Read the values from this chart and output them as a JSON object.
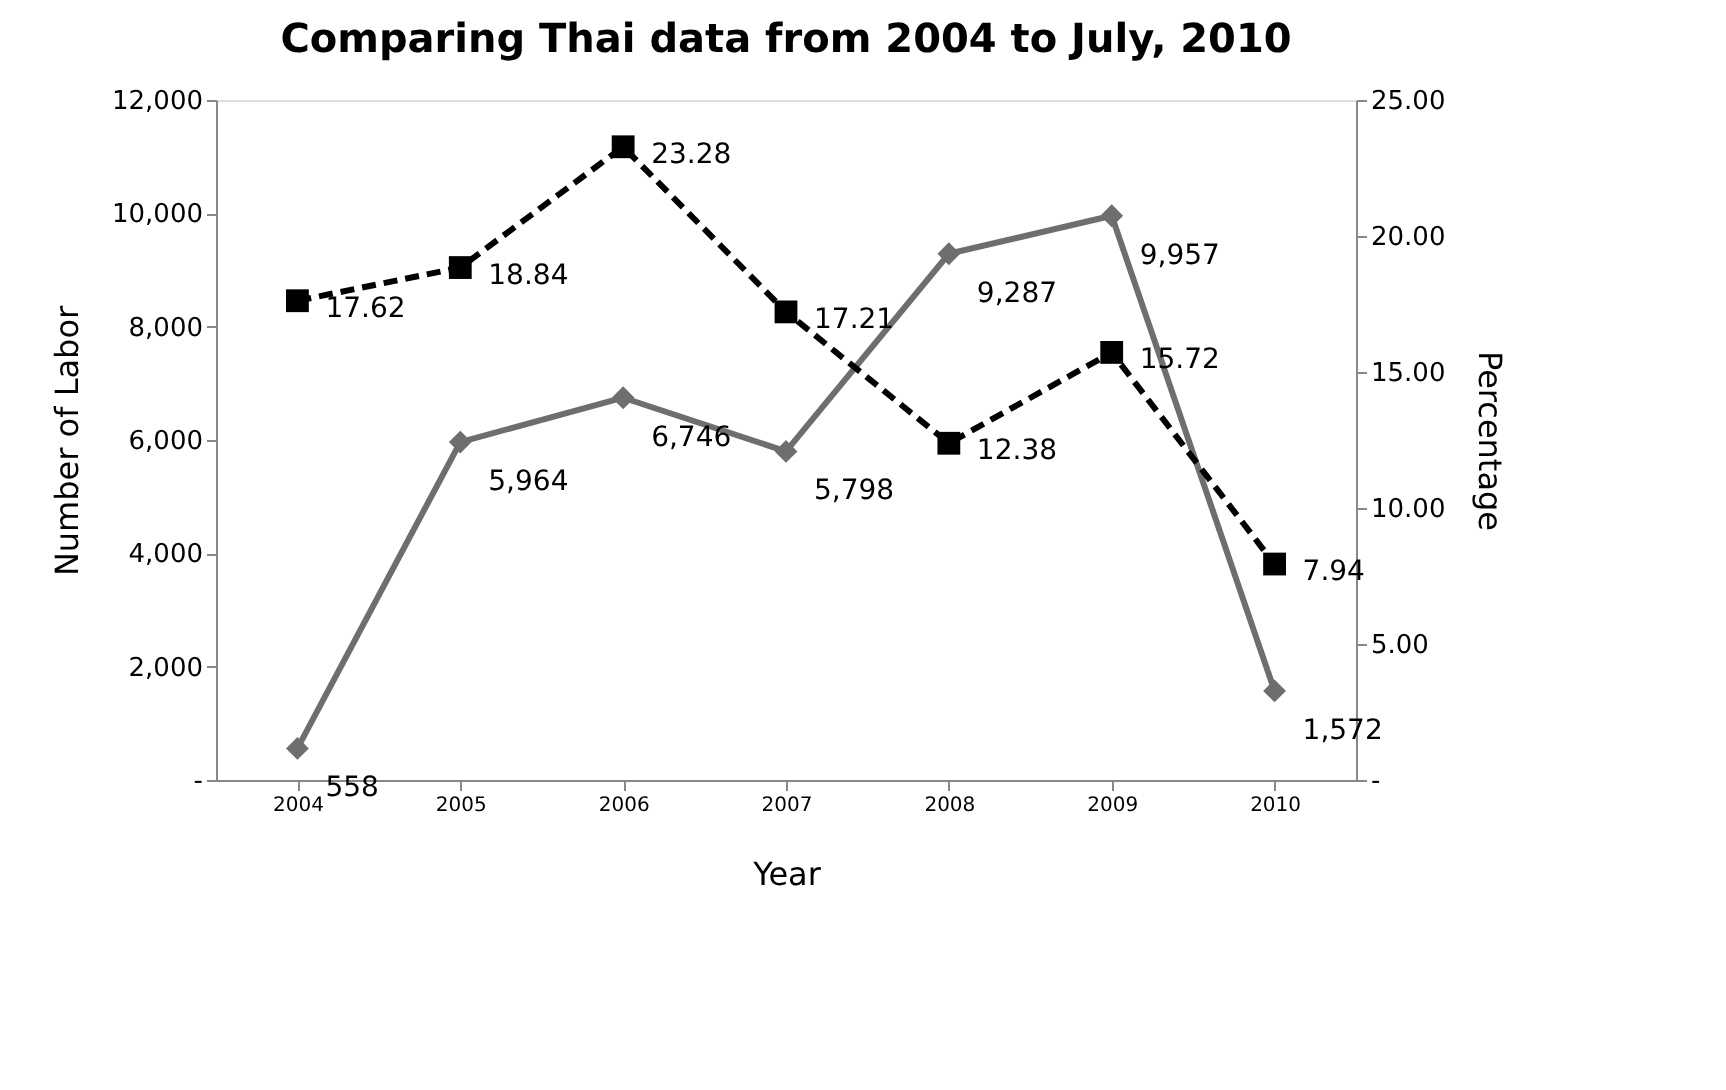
{
  "chart_data": {
    "type": "line",
    "title": "Comparing Thai data from 2004 to July, 2010",
    "xlabel": "Year",
    "ylabel": "Number of Labor",
    "y2label": "Percentage",
    "categories": [
      "2004",
      "2005",
      "2006",
      "2007",
      "2008",
      "2009",
      "2010"
    ],
    "series": [
      {
        "color": "#6e6e6e",
        "marker": "diamond",
        "line_style": "solid",
        "values": [
          558,
          5964,
          6746,
          5798,
          9287,
          9957,
          1572
        ],
        "value_labels": [
          "558",
          "5,964",
          "6,746",
          "5,798",
          "9,287",
          "9,957",
          "1,572"
        ]
      },
      {
        "color": "#000000",
        "marker": "square",
        "line_style": "dashed",
        "axis": "y2",
        "values": [
          17.62,
          18.84,
          23.28,
          17.21,
          12.38,
          15.72,
          7.94
        ],
        "value_labels": [
          "17.62",
          "18.84",
          "23.28",
          "17.21",
          "12.38",
          "15.72",
          "7.94"
        ]
      }
    ],
    "ylim": [
      0,
      12000
    ],
    "yticks": [
      {
        "value": 0,
        "label": "-"
      },
      {
        "value": 2000,
        "label": "2,000"
      },
      {
        "value": 4000,
        "label": "4,000"
      },
      {
        "value": 6000,
        "label": "6,000"
      },
      {
        "value": 8000,
        "label": "8,000"
      },
      {
        "value": 10000,
        "label": "10,000"
      },
      {
        "value": 12000,
        "label": "12,000"
      }
    ],
    "y2lim": [
      0,
      25
    ],
    "y2ticks": [
      {
        "value": 0,
        "label": "-"
      },
      {
        "value": 5,
        "label": "5.00"
      },
      {
        "value": 10,
        "label": "10.00"
      },
      {
        "value": 15,
        "label": "15.00"
      },
      {
        "value": 20,
        "label": "20.00"
      },
      {
        "value": 25,
        "label": "25.00"
      }
    ],
    "grid": false
  }
}
